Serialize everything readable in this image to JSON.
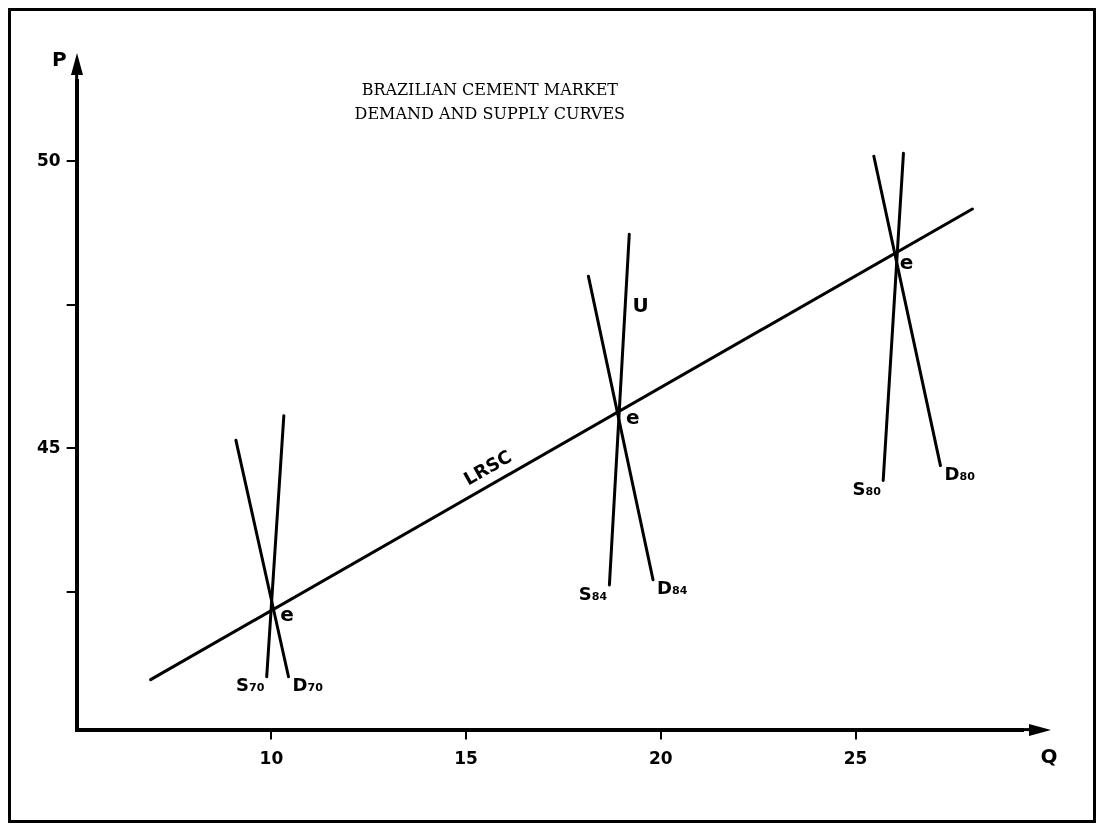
{
  "chart_data": {
    "type": "line",
    "title": "BRAZILIAN CEMENT MARKET",
    "subtitle": "DEMAND AND SUPPLY CURVES",
    "xlabel": "Q",
    "ylabel": "P",
    "xlim": [
      5,
      29.3
    ],
    "ylim": [
      40.1,
      51.4
    ],
    "xticks": [
      10,
      15,
      20,
      25
    ],
    "yticks": [
      {
        "value": 42.5,
        "label": null
      },
      45,
      {
        "value": 47.5,
        "label": null
      },
      50
    ],
    "grid": false,
    "legend": false,
    "marker": "none",
    "line_style": "solid",
    "series": [
      {
        "name": "LRSC",
        "color": "#000000",
        "x": [
          6.9,
          28.0
        ],
        "values": [
          40.97,
          49.17
        ]
      },
      {
        "name": "S₇₀",
        "color": "#000000",
        "x": [
          9.88,
          10.32
        ],
        "values": [
          41.02,
          45.57
        ]
      },
      {
        "name": "D₇₀",
        "color": "#000000",
        "x": [
          9.09,
          10.44
        ],
        "values": [
          45.14,
          41.02
        ]
      },
      {
        "name": "S₈₄",
        "color": "#000000",
        "x": [
          18.68,
          19.19
        ],
        "values": [
          42.62,
          48.73
        ]
      },
      {
        "name": "D₈₄",
        "color": "#000000",
        "x": [
          18.14,
          19.8
        ],
        "values": [
          48.0,
          42.71
        ]
      },
      {
        "name": "S₈₀",
        "color": "#000000",
        "x": [
          25.71,
          26.23
        ],
        "values": [
          44.44,
          50.14
        ]
      },
      {
        "name": "D₈₀",
        "color": "#000000",
        "x": [
          25.47,
          27.18
        ],
        "values": [
          50.09,
          44.7
        ]
      }
    ],
    "annotations": [
      {
        "text": "e",
        "x": 10.02,
        "y": 42.22
      },
      {
        "text": "e",
        "x": 18.9,
        "y": 45.66
      },
      {
        "text": "e",
        "x": 25.93,
        "y": 48.35
      },
      {
        "text": "U",
        "x": 19.07,
        "y": 47.6
      }
    ]
  }
}
